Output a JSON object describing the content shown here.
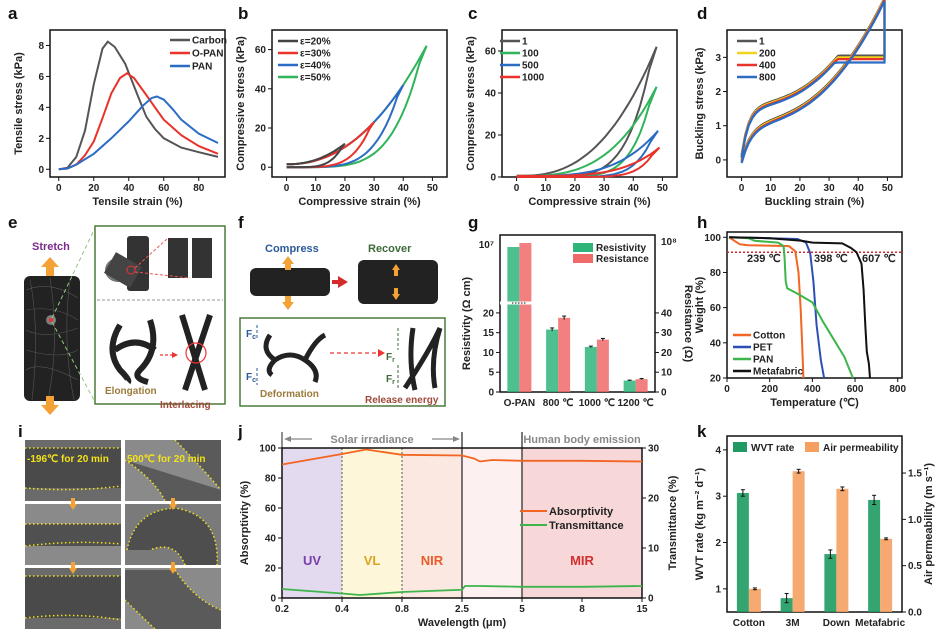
{
  "panel_labels": [
    "a",
    "b",
    "c",
    "d",
    "e",
    "f",
    "g",
    "h",
    "i",
    "j",
    "k"
  ],
  "chart_data": [
    {
      "id": "a",
      "type": "line",
      "xlabel": "Tensile strain (%)",
      "ylabel": "Tensile stress (kPa)",
      "xlim": [
        -5,
        95
      ],
      "ylim": [
        -0.5,
        9
      ],
      "xticks": [
        0,
        20,
        40,
        60,
        80
      ],
      "yticks": [
        0,
        2,
        4,
        6,
        8
      ],
      "legend": "top-right",
      "series": [
        {
          "name": "Carbon",
          "color": "#555555",
          "points": [
            [
              0,
              0
            ],
            [
              5,
              0.1
            ],
            [
              10,
              0.8
            ],
            [
              15,
              2.5
            ],
            [
              20,
              5.5
            ],
            [
              25,
              7.8
            ],
            [
              28,
              8.25
            ],
            [
              32,
              7.9
            ],
            [
              38,
              6.8
            ],
            [
              45,
              4.8
            ],
            [
              50,
              3.4
            ],
            [
              55,
              2.6
            ],
            [
              60,
              2.0
            ],
            [
              70,
              1.4
            ],
            [
              80,
              1.1
            ],
            [
              91,
              0.8
            ]
          ]
        },
        {
          "name": "O-PAN",
          "color": "#e8322a",
          "points": [
            [
              0,
              0
            ],
            [
              5,
              0.05
            ],
            [
              10,
              0.3
            ],
            [
              15,
              0.9
            ],
            [
              20,
              1.8
            ],
            [
              25,
              3.3
            ],
            [
              30,
              4.9
            ],
            [
              35,
              5.9
            ],
            [
              39,
              6.2
            ],
            [
              43,
              5.9
            ],
            [
              50,
              4.8
            ],
            [
              55,
              4.0
            ],
            [
              60,
              3.2
            ],
            [
              70,
              2.2
            ],
            [
              80,
              1.5
            ],
            [
              91,
              1.0
            ]
          ]
        },
        {
          "name": "PAN",
          "color": "#2b6cc4",
          "points": [
            [
              0,
              0
            ],
            [
              5,
              0.05
            ],
            [
              10,
              0.3
            ],
            [
              20,
              1.0
            ],
            [
              30,
              2.0
            ],
            [
              40,
              3.1
            ],
            [
              48,
              4.1
            ],
            [
              53,
              4.6
            ],
            [
              56,
              4.7
            ],
            [
              60,
              4.5
            ],
            [
              65,
              3.9
            ],
            [
              70,
              3.2
            ],
            [
              80,
              2.3
            ],
            [
              91,
              1.7
            ]
          ]
        }
      ]
    },
    {
      "id": "b",
      "type": "line",
      "xlabel": "Compressive strain (%)",
      "ylabel": "Compressive stress  (kPa)",
      "xlim": [
        -5,
        55
      ],
      "ylim": [
        -5,
        70
      ],
      "xticks": [
        0,
        10,
        20,
        30,
        40,
        50
      ],
      "yticks": [
        0,
        20,
        40,
        60
      ],
      "legend": "top-left",
      "series": [
        {
          "name": "ε=20%",
          "color": "#444444",
          "max_strain": 20,
          "max_stress": 12
        },
        {
          "name": "ε=30%",
          "color": "#e8322a",
          "max_strain": 30,
          "max_stress": 23
        },
        {
          "name": "ε=40%",
          "color": "#2b6cc4",
          "max_strain": 40,
          "max_stress": 42
        },
        {
          "name": "ε=50%",
          "color": "#2fb45a",
          "max_strain": 48,
          "max_stress": 62
        }
      ]
    },
    {
      "id": "c",
      "type": "line",
      "xlabel": "Compressive strain (%)",
      "ylabel": "Compressive stress (kPa)",
      "xlim": [
        -5,
        55
      ],
      "ylim": [
        0,
        70
      ],
      "xticks": [
        0,
        10,
        20,
        30,
        40,
        50
      ],
      "yticks": [
        0,
        20,
        40,
        60
      ],
      "legend": "top-left",
      "series": [
        {
          "name": "1",
          "color": "#555555",
          "max_strain": 48,
          "max_stress": 62
        },
        {
          "name": "100",
          "color": "#2fb45a",
          "max_strain": 48,
          "max_stress": 43
        },
        {
          "name": "500",
          "color": "#2b6cc4",
          "max_strain": 48.5,
          "max_stress": 22
        },
        {
          "name": "1000",
          "color": "#e8322a",
          "max_strain": 49,
          "max_stress": 14
        }
      ]
    },
    {
      "id": "d",
      "type": "line",
      "xlabel": "Buckling strain (%)",
      "ylabel": "Buckling stress (kPa)",
      "xlim": [
        -5,
        55
      ],
      "ylim": [
        -0.5,
        3.8
      ],
      "xticks": [
        0,
        10,
        20,
        30,
        40,
        50
      ],
      "yticks": [
        0,
        1,
        2,
        3
      ],
      "legend": "top-left",
      "series": [
        {
          "name": "1",
          "color": "#555555",
          "max_stress": 3.05
        },
        {
          "name": "200",
          "color": "#f2d21a",
          "max_stress": 3.0
        },
        {
          "name": "400",
          "color": "#e8322a",
          "max_stress": 2.95
        },
        {
          "name": "800",
          "color": "#2b6cc4",
          "max_stress": 2.85
        }
      ]
    },
    {
      "id": "g",
      "type": "bar",
      "categories": [
        "O-PAN",
        "800 ℃",
        "1000 ℃",
        "1200 ℃"
      ],
      "ylabel": "Resistivity (Ω cm)",
      "y2label": "Resistance (Ω)",
      "yticks": [
        0,
        5,
        10,
        15,
        20
      ],
      "y2ticks": [
        0,
        10,
        20,
        30,
        40
      ],
      "ybreak_top_label": "10⁷",
      "y2break_top_label": "10⁸",
      "legend": "top-right",
      "series": [
        {
          "name": "Resistivity",
          "color": "#2fb47a",
          "values": [
            10000000,
            15.8,
            11.4,
            2.9
          ],
          "errors": [
            0,
            0.4,
            0.2,
            0.1
          ]
        },
        {
          "name": "Resistance",
          "color": "#f06a6a",
          "values": [
            120000000,
            37.5,
            26.5,
            6.5
          ],
          "errors": [
            0,
            0.9,
            0.6,
            0.3
          ]
        }
      ]
    },
    {
      "id": "h",
      "type": "line",
      "xlabel": "Temperature (℃)",
      "ylabel": "Weight (%)",
      "xlim": [
        0,
        820
      ],
      "ylim": [
        20,
        103
      ],
      "xticks": [
        0,
        200,
        400,
        600,
        800
      ],
      "yticks": [
        20,
        40,
        60,
        80,
        100
      ],
      "threshold_line": 91.5,
      "annotations": [
        {
          "text": "239 ℃",
          "color": "#3db54a"
        },
        {
          "text": "398 ℃",
          "color": "#2b4fb4"
        },
        {
          "text": "607 ℃",
          "color": "#111111"
        }
      ],
      "legend": "bottom-left",
      "series": [
        {
          "name": "Cotton",
          "color": "#f26522",
          "points": [
            [
              10,
              100
            ],
            [
              60,
              96
            ],
            [
              100,
              95.5
            ],
            [
              290,
              95
            ],
            [
              320,
              92
            ],
            [
              335,
              80
            ],
            [
              345,
              60
            ],
            [
              352,
              40
            ],
            [
              358,
              20
            ]
          ]
        },
        {
          "name": "PET",
          "color": "#2b4fb4",
          "points": [
            [
              10,
              100
            ],
            [
              200,
              99.5
            ],
            [
              330,
              99
            ],
            [
              370,
              97
            ],
            [
              390,
              91
            ],
            [
              405,
              75
            ],
            [
              420,
              50
            ],
            [
              440,
              30
            ],
            [
              455,
              20
            ]
          ]
        },
        {
          "name": "PAN",
          "color": "#3db54a",
          "points": [
            [
              10,
              100
            ],
            [
              100,
              99.5
            ],
            [
              130,
              98
            ],
            [
              240,
              97
            ],
            [
              265,
              95
            ],
            [
              270,
              88
            ],
            [
              275,
              75
            ],
            [
              282,
              71
            ],
            [
              330,
              68
            ],
            [
              400,
              63
            ],
            [
              450,
              52
            ],
            [
              500,
              42
            ],
            [
              550,
              32
            ],
            [
              590,
              20
            ]
          ]
        },
        {
          "name": "Metafabric",
          "color": "#111111",
          "points": [
            [
              10,
              100
            ],
            [
              200,
              99.5
            ],
            [
              350,
              98
            ],
            [
              400,
              97
            ],
            [
              540,
              96.5
            ],
            [
              580,
              94
            ],
            [
              607,
              91.5
            ],
            [
              630,
              85
            ],
            [
              640,
              70
            ],
            [
              648,
              50
            ],
            [
              655,
              35
            ],
            [
              665,
              28
            ],
            [
              670,
              20
            ]
          ]
        }
      ]
    },
    {
      "id": "j",
      "type": "line",
      "xlabel": "Wavelength (μm)",
      "ylabel": "Absorptivity (%)",
      "y2label": "Transmittance (%)",
      "xticks": [
        "0.2",
        "0.4",
        "0.8",
        "2.5",
        "5",
        "8",
        "15"
      ],
      "yticks": [
        0,
        20,
        40,
        60,
        80,
        100
      ],
      "y2ticks": [
        0,
        10,
        20,
        30
      ],
      "regions": [
        {
          "label": "UV",
          "from": "0.2",
          "to": "0.4",
          "color": "#e3daf0",
          "label_color": "#7b3ea8"
        },
        {
          "label": "VL",
          "from": "0.4",
          "to": "0.8",
          "color": "#fdf6d8",
          "label_color": "#d9a520"
        },
        {
          "label": "NIR",
          "from": "0.8",
          "to": "2.5",
          "color": "#fbe8e0",
          "label_color": "#e85d2a"
        },
        {
          "label": "",
          "from": "2.5",
          "to": "5",
          "color": "#fdf0f0",
          "label_color": "#000000"
        },
        {
          "label": "MIR",
          "from": "5",
          "to": "15",
          "color": "#f7d7d7",
          "label_color": "#d03030"
        }
      ],
      "range_labels": [
        "Solar irradiance",
        "Human body emission"
      ],
      "legend": "center-right",
      "series": [
        {
          "name": "Absorptivity",
          "color": "#f26522",
          "axis": "left",
          "points": [
            [
              0,
              89
            ],
            [
              1,
              96
            ],
            [
              1.4,
              99
            ],
            [
              2,
              95.5
            ],
            [
              3,
              95
            ],
            [
              3.2,
              93
            ],
            [
              3.3,
              91
            ],
            [
              3.5,
              92
            ],
            [
              4,
              91.5
            ],
            [
              5,
              91.5
            ],
            [
              6,
              91
            ]
          ]
        },
        {
          "name": "Transmittance",
          "color": "#3db54a",
          "axis": "left",
          "points": [
            [
              0,
              6
            ],
            [
              1,
              3
            ],
            [
              1.3,
              2
            ],
            [
              2,
              4
            ],
            [
              3,
              5.5
            ],
            [
              3.05,
              8
            ],
            [
              3.3,
              8
            ],
            [
              4,
              7.5
            ],
            [
              5,
              7.5
            ],
            [
              6,
              8
            ]
          ]
        }
      ]
    },
    {
      "id": "k",
      "type": "bar",
      "categories": [
        "Cotton",
        "3M",
        "Down",
        "Metafabric"
      ],
      "ylabel": "WVT rate (kg m⁻² d⁻¹)",
      "y2label": "Air permeability (m s⁻¹)",
      "ylim": [
        0.5,
        4.3
      ],
      "y2lim": [
        0,
        1.9
      ],
      "yticks": [
        1,
        2,
        3,
        4
      ],
      "y2ticks": [
        "0.0",
        "0.5",
        "1.0",
        "1.5"
      ],
      "legend": "top",
      "series": [
        {
          "name": "WVT rate",
          "color": "#1e9a62",
          "axis": "left",
          "values": [
            3.07,
            0.8,
            1.75,
            2.92
          ],
          "errors": [
            0.07,
            0.1,
            0.09,
            0.1
          ]
        },
        {
          "name": "Air permeability",
          "color": "#f5a060",
          "axis": "right",
          "values": [
            0.25,
            1.52,
            1.33,
            0.79
          ],
          "errors": [
            0.01,
            0.02,
            0.02,
            0.01
          ]
        }
      ]
    }
  ],
  "panel_e": {
    "stretch": "Stretch",
    "elongation": "Elongation",
    "interlacing": "Interlacing"
  },
  "panel_f": {
    "compress": "Compress",
    "recover": "Recover",
    "fc": "F",
    "fc_sub": "c",
    "fr": "F",
    "fr_sub": "r",
    "deformation": "Deformation",
    "release": "Release energy"
  },
  "panel_i": {
    "left_title": "-196℃ for 20 min",
    "right_title": "500℃ for 20 min"
  }
}
